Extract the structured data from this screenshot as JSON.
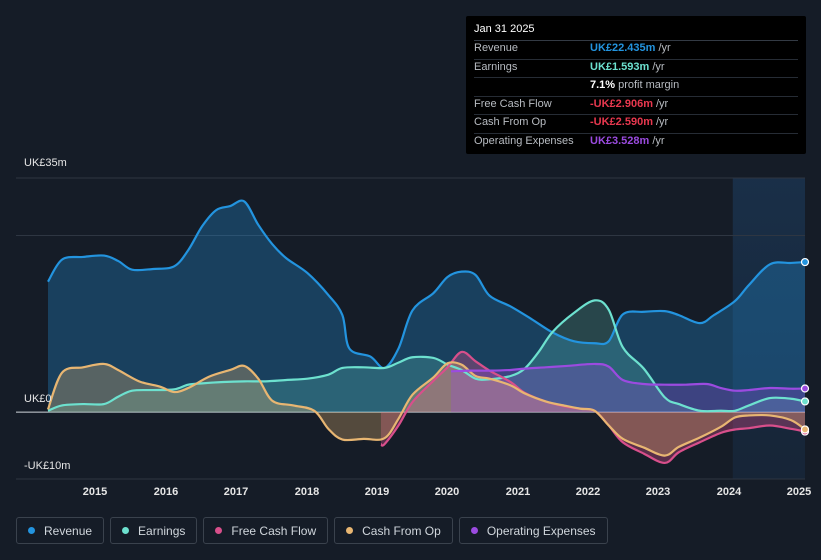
{
  "chart_data": {
    "type": "area",
    "y_unit": "UK£m",
    "ylim": [
      -10,
      35
    ],
    "y_tick_labels": [
      "UK£35m",
      "UK£0",
      "-UK£10m"
    ],
    "x_tick_labels": [
      "2015",
      "2016",
      "2017",
      "2018",
      "2019",
      "2020",
      "2021",
      "2022",
      "2023",
      "2024",
      "2025"
    ],
    "x_tick_years": [
      2015,
      2016,
      2017,
      2018,
      2019,
      2020,
      2021,
      2022,
      2023,
      2024,
      2025
    ],
    "x_range": [
      2014.3,
      2025.1
    ],
    "forecast_start": 2024.07,
    "series": [
      {
        "name": "Revenue",
        "color": "#2394df",
        "points": [
          [
            2014.3,
            19.5
          ],
          [
            2014.5,
            22.8
          ],
          [
            2014.8,
            23.2
          ],
          [
            2015.1,
            23.4
          ],
          [
            2015.3,
            22.6
          ],
          [
            2015.5,
            21.3
          ],
          [
            2015.8,
            21.4
          ],
          [
            2016.1,
            21.8
          ],
          [
            2016.3,
            24.2
          ],
          [
            2016.5,
            27.8
          ],
          [
            2016.7,
            30.2
          ],
          [
            2016.9,
            30.8
          ],
          [
            2017.1,
            31.5
          ],
          [
            2017.3,
            28
          ],
          [
            2017.5,
            25.1
          ],
          [
            2017.7,
            23
          ],
          [
            2018.0,
            20.8
          ],
          [
            2018.3,
            17.5
          ],
          [
            2018.5,
            14.5
          ],
          [
            2018.6,
            9.5
          ],
          [
            2018.9,
            8.3
          ],
          [
            2019.1,
            6.6
          ],
          [
            2019.3,
            9.5
          ],
          [
            2019.5,
            15.2
          ],
          [
            2019.8,
            17.8
          ],
          [
            2020.0,
            20.2
          ],
          [
            2020.2,
            21
          ],
          [
            2020.4,
            20.5
          ],
          [
            2020.6,
            17.4
          ],
          [
            2020.9,
            15.8
          ],
          [
            2021.2,
            13.9
          ],
          [
            2021.5,
            11.9
          ],
          [
            2021.8,
            10.6
          ],
          [
            2022.1,
            10.3
          ],
          [
            2022.3,
            10.6
          ],
          [
            2022.5,
            14.6
          ],
          [
            2022.8,
            15.0
          ],
          [
            2023.1,
            15.1
          ],
          [
            2023.3,
            14.5
          ],
          [
            2023.6,
            13.3
          ],
          [
            2023.8,
            14.5
          ],
          [
            2024.1,
            16.6
          ],
          [
            2024.3,
            19.0
          ],
          [
            2024.6,
            22.1
          ],
          [
            2024.9,
            22.3
          ],
          [
            2025.1,
            22.435
          ]
        ]
      },
      {
        "name": "Earnings",
        "color": "#6de1cf",
        "points": [
          [
            2014.3,
            0.2
          ],
          [
            2014.5,
            1.0
          ],
          [
            2014.8,
            1.2
          ],
          [
            2015.1,
            1.2
          ],
          [
            2015.3,
            2.3
          ],
          [
            2015.5,
            3.2
          ],
          [
            2015.8,
            3.3
          ],
          [
            2016.1,
            3.4
          ],
          [
            2016.3,
            4.1
          ],
          [
            2016.5,
            4.3
          ],
          [
            2016.8,
            4.5
          ],
          [
            2017.1,
            4.6
          ],
          [
            2017.4,
            4.6
          ],
          [
            2017.7,
            4.8
          ],
          [
            2018.0,
            5.0
          ],
          [
            2018.3,
            5.6
          ],
          [
            2018.5,
            6.6
          ],
          [
            2018.8,
            6.7
          ],
          [
            2019.1,
            6.6
          ],
          [
            2019.3,
            7.4
          ],
          [
            2019.5,
            8.2
          ],
          [
            2019.8,
            8.1
          ],
          [
            2020.0,
            7.1
          ],
          [
            2020.2,
            6.3
          ],
          [
            2020.4,
            5.0
          ],
          [
            2020.6,
            4.9
          ],
          [
            2020.9,
            5.4
          ],
          [
            2021.1,
            6.5
          ],
          [
            2021.3,
            9.0
          ],
          [
            2021.5,
            12.0
          ],
          [
            2021.8,
            14.8
          ],
          [
            2022.1,
            16.7
          ],
          [
            2022.3,
            15.3
          ],
          [
            2022.5,
            9.7
          ],
          [
            2022.8,
            6.5
          ],
          [
            2023.1,
            2.2
          ],
          [
            2023.3,
            1.2
          ],
          [
            2023.6,
            0.2
          ],
          [
            2023.9,
            0.2
          ],
          [
            2024.1,
            0.2
          ],
          [
            2024.3,
            1.0
          ],
          [
            2024.6,
            2.1
          ],
          [
            2024.9,
            2.0
          ],
          [
            2025.1,
            1.593
          ]
        ]
      },
      {
        "name": "Free Cash Flow",
        "color": "#d84f8b",
        "points": [
          [
            2019.05,
            -4.8
          ],
          [
            2019.1,
            -4.8
          ],
          [
            2019.3,
            -2.0
          ],
          [
            2019.5,
            1.5
          ],
          [
            2019.8,
            4.7
          ],
          [
            2020.0,
            6.7
          ],
          [
            2020.2,
            9.0
          ],
          [
            2020.4,
            7.6
          ],
          [
            2020.6,
            6.2
          ],
          [
            2020.9,
            4.5
          ],
          [
            2021.1,
            2.9
          ],
          [
            2021.4,
            1.6
          ],
          [
            2021.7,
            0.8
          ],
          [
            2021.9,
            0.5
          ],
          [
            2022.1,
            0.2
          ],
          [
            2022.3,
            -2.0
          ],
          [
            2022.5,
            -4.5
          ],
          [
            2022.8,
            -6.2
          ],
          [
            2023.1,
            -7.6
          ],
          [
            2023.3,
            -6.0
          ],
          [
            2023.6,
            -4.5
          ],
          [
            2023.9,
            -3.1
          ],
          [
            2024.1,
            -2.6
          ],
          [
            2024.3,
            -2.4
          ],
          [
            2024.6,
            -2.0
          ],
          [
            2024.9,
            -2.5
          ],
          [
            2025.1,
            -2.906
          ]
        ]
      },
      {
        "name": "Cash From Op",
        "color": "#e8b672",
        "points": [
          [
            2014.3,
            0.4
          ],
          [
            2014.5,
            5.9
          ],
          [
            2014.8,
            6.7
          ],
          [
            2015.1,
            7.2
          ],
          [
            2015.3,
            6.3
          ],
          [
            2015.6,
            4.6
          ],
          [
            2015.9,
            3.8
          ],
          [
            2016.1,
            3.0
          ],
          [
            2016.3,
            3.6
          ],
          [
            2016.6,
            5.3
          ],
          [
            2016.9,
            6.3
          ],
          [
            2017.1,
            6.9
          ],
          [
            2017.3,
            5.0
          ],
          [
            2017.5,
            1.7
          ],
          [
            2017.8,
            1.0
          ],
          [
            2018.1,
            0.2
          ],
          [
            2018.3,
            -2.5
          ],
          [
            2018.5,
            -4.1
          ],
          [
            2018.8,
            -4.0
          ],
          [
            2019.1,
            -3.9
          ],
          [
            2019.3,
            -1.0
          ],
          [
            2019.5,
            2.6
          ],
          [
            2019.8,
            5.2
          ],
          [
            2020.0,
            7.3
          ],
          [
            2020.2,
            7.1
          ],
          [
            2020.4,
            5.4
          ],
          [
            2020.6,
            5.0
          ],
          [
            2020.9,
            4.0
          ],
          [
            2021.1,
            2.8
          ],
          [
            2021.4,
            1.6
          ],
          [
            2021.7,
            0.9
          ],
          [
            2021.9,
            0.5
          ],
          [
            2022.1,
            0.2
          ],
          [
            2022.3,
            -2.0
          ],
          [
            2022.5,
            -4.0
          ],
          [
            2022.8,
            -5.3
          ],
          [
            2023.1,
            -6.5
          ],
          [
            2023.3,
            -5.2
          ],
          [
            2023.6,
            -3.8
          ],
          [
            2023.9,
            -2.2
          ],
          [
            2024.1,
            -0.8
          ],
          [
            2024.3,
            -0.5
          ],
          [
            2024.6,
            -0.5
          ],
          [
            2024.9,
            -1.2
          ],
          [
            2025.1,
            -2.59
          ]
        ]
      },
      {
        "name": "Operating Expenses",
        "color": "#9b4be0",
        "points": [
          [
            2020.05,
            6.1
          ],
          [
            2020.3,
            6.2
          ],
          [
            2020.6,
            6.2
          ],
          [
            2020.9,
            6.3
          ],
          [
            2021.1,
            6.5
          ],
          [
            2021.4,
            6.7
          ],
          [
            2021.7,
            6.9
          ],
          [
            2022.1,
            7.2
          ],
          [
            2022.3,
            6.8
          ],
          [
            2022.5,
            4.8
          ],
          [
            2022.8,
            4.2
          ],
          [
            2023.1,
            4.1
          ],
          [
            2023.4,
            4.1
          ],
          [
            2023.7,
            4.2
          ],
          [
            2023.9,
            3.6
          ],
          [
            2024.1,
            3.2
          ],
          [
            2024.3,
            3.3
          ],
          [
            2024.6,
            3.6
          ],
          [
            2024.9,
            3.5
          ],
          [
            2025.1,
            3.528
          ]
        ]
      }
    ]
  },
  "tooltip": {
    "date": "Jan 31 2025",
    "rows": [
      {
        "label": "Revenue",
        "value": "UK£22.435m",
        "unit": "/yr",
        "color": "#2394df"
      },
      {
        "label": "Earnings",
        "value": "UK£1.593m",
        "unit": "/yr",
        "color": "#6de1cf"
      },
      {
        "label": "",
        "value": "7.1%",
        "unit": "profit margin",
        "color": "#ffffff"
      },
      {
        "label": "Free Cash Flow",
        "value": "-UK£2.906m",
        "unit": "/yr",
        "color": "#e8384f"
      },
      {
        "label": "Cash From Op",
        "value": "-UK£2.590m",
        "unit": "/yr",
        "color": "#e8384f"
      },
      {
        "label": "Operating Expenses",
        "value": "UK£3.528m",
        "unit": "/yr",
        "color": "#9b4be0"
      }
    ]
  },
  "legend": [
    {
      "label": "Revenue",
      "color": "#2394df"
    },
    {
      "label": "Earnings",
      "color": "#6de1cf"
    },
    {
      "label": "Free Cash Flow",
      "color": "#d84f8b"
    },
    {
      "label": "Cash From Op",
      "color": "#e8b672"
    },
    {
      "label": "Operating Expenses",
      "color": "#9b4be0"
    }
  ]
}
